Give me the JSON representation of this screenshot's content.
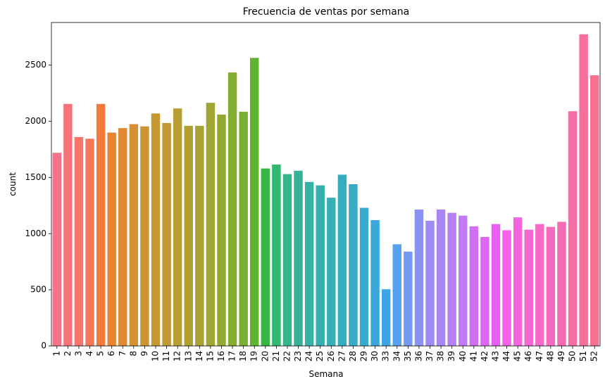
{
  "chart_data": {
    "type": "bar",
    "title": "Frecuencia de ventas por semana",
    "xlabel": "Semana",
    "ylabel": "count",
    "ylim": [
      0,
      2880
    ],
    "yticks": [
      0,
      500,
      1000,
      1500,
      2000,
      2500
    ],
    "grid": false,
    "legend": "none",
    "categories": [
      "1",
      "2",
      "3",
      "4",
      "5",
      "6",
      "7",
      "8",
      "9",
      "10",
      "11",
      "12",
      "13",
      "14",
      "15",
      "16",
      "17",
      "18",
      "19",
      "20",
      "21",
      "22",
      "23",
      "24",
      "25",
      "26",
      "27",
      "28",
      "29",
      "30",
      "33",
      "34",
      "35",
      "36",
      "37",
      "38",
      "39",
      "40",
      "41",
      "42",
      "43",
      "44",
      "45",
      "46",
      "47",
      "48",
      "49",
      "50",
      "51",
      "52"
    ],
    "values": [
      1720,
      2155,
      1860,
      1845,
      2155,
      1900,
      1940,
      1975,
      1955,
      2070,
      1985,
      2115,
      1960,
      1960,
      2165,
      2060,
      2435,
      2085,
      2565,
      1580,
      1615,
      1530,
      1560,
      1460,
      1430,
      1320,
      1525,
      1440,
      1230,
      1120,
      505,
      905,
      840,
      1215,
      1115,
      1215,
      1185,
      1160,
      1065,
      970,
      1085,
      1030,
      1145,
      1035,
      1085,
      1060,
      1105,
      2090,
      2775,
      2410
    ],
    "colors": [
      "#f77189",
      "#f6737a",
      "#f6746a",
      "#f57658",
      "#f3793d",
      "#e88332",
      "#df8a32",
      "#d68f32",
      "#ce9332",
      "#c69732",
      "#bf9a32",
      "#b89d32",
      "#b0a032",
      "#a8a332",
      "#9fa632",
      "#94a932",
      "#87ac32",
      "#77b032",
      "#60b432",
      "#35b842",
      "#33b672",
      "#34b48a",
      "#34b399",
      "#35b1a5",
      "#35b0ae",
      "#36afb7",
      "#36adbf",
      "#37acc7",
      "#38abd0",
      "#39a8da",
      "#3ca5e6",
      "#56a0f2",
      "#7598f3",
      "#8a92f4",
      "#9a8cf4",
      "#a887f4",
      "#b580f4",
      "#c378f4",
      "#d06ff4",
      "#dd66f4",
      "#e95ff3",
      "#f362e9",
      "#f565de",
      "#f567d3",
      "#f569c9",
      "#f56abf",
      "#f66cb4",
      "#f66ea8",
      "#f6709b",
      "#f6718f"
    ]
  }
}
